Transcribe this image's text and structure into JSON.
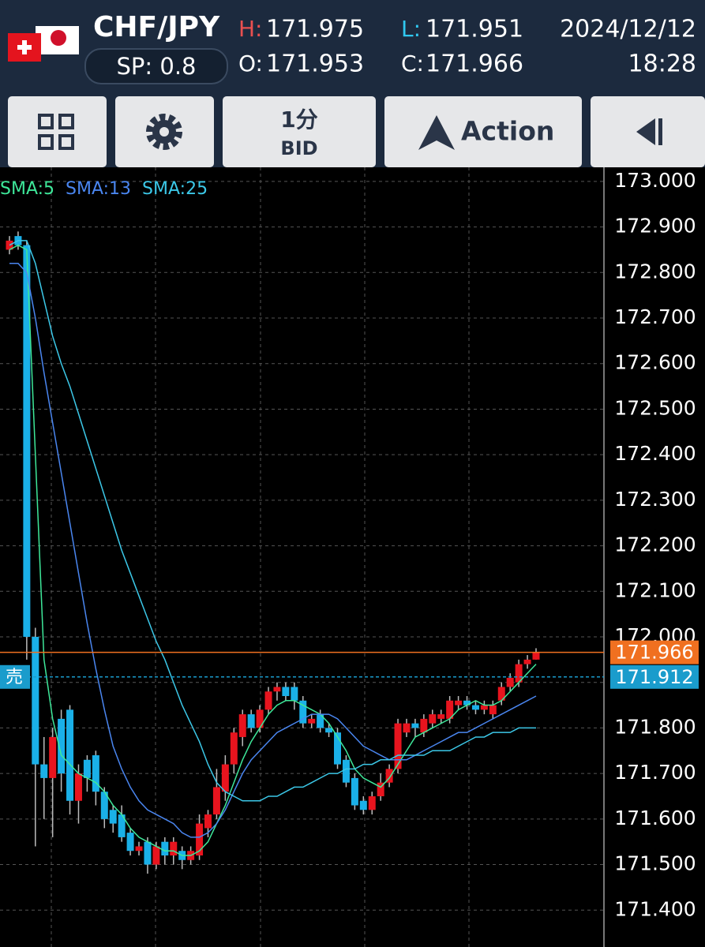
{
  "header": {
    "symbol": "CHF/JPY",
    "spread": "SP: 0.8",
    "high_label": "H:",
    "high": 171.975,
    "low_label": "L:",
    "low": 171.951,
    "open_label": "O:",
    "open": 171.953,
    "close_label": "C:",
    "close": 171.966,
    "date": "2024/12/12",
    "time": "18:28"
  },
  "toolbar": {
    "timeframe": "1分",
    "price_type": "BID",
    "action": "Action"
  },
  "chart_data": {
    "type": "candlestick",
    "up_color": "#e8141e",
    "down_color": "#1ab0e8",
    "open": [
      172.85,
      172.88,
      172.86,
      172.0,
      171.72,
      171.69,
      171.82,
      171.84,
      171.64,
      171.73,
      171.74,
      171.66,
      171.62,
      171.61,
      171.57,
      171.53,
      171.55,
      171.5,
      171.55,
      171.52,
      171.53,
      171.51,
      171.52,
      171.58,
      171.61,
      171.66,
      171.72,
      171.78,
      171.83,
      171.8,
      171.84,
      171.88,
      171.89,
      171.89,
      171.86,
      171.81,
      171.83,
      171.8,
      171.79,
      171.73,
      171.69,
      171.64,
      171.62,
      171.65,
      171.68,
      171.71,
      171.79,
      171.81,
      171.79,
      171.81,
      171.82,
      171.82,
      171.85,
      171.86,
      171.85,
      171.84,
      171.83,
      171.86,
      171.89,
      171.9,
      171.94,
      171.95
    ],
    "high": [
      172.88,
      172.89,
      172.87,
      172.02,
      171.78,
      171.8,
      171.84,
      171.85,
      171.72,
      171.74,
      171.75,
      171.67,
      171.63,
      171.63,
      171.58,
      171.55,
      171.56,
      171.55,
      171.56,
      171.56,
      171.54,
      171.54,
      171.61,
      171.62,
      171.71,
      171.74,
      171.8,
      171.84,
      171.84,
      171.85,
      171.89,
      171.9,
      171.9,
      171.9,
      171.87,
      171.83,
      171.84,
      171.81,
      171.8,
      171.74,
      171.7,
      171.65,
      171.66,
      171.7,
      171.72,
      171.82,
      171.82,
      171.82,
      171.83,
      171.84,
      171.84,
      171.87,
      171.87,
      171.87,
      171.86,
      171.86,
      171.86,
      171.9,
      171.92,
      171.95,
      171.96,
      171.975
    ],
    "low": [
      172.84,
      172.85,
      171.95,
      171.54,
      171.6,
      171.56,
      171.66,
      171.61,
      171.59,
      171.66,
      171.63,
      171.58,
      171.57,
      171.55,
      171.52,
      171.52,
      171.48,
      171.49,
      171.5,
      171.5,
      171.49,
      171.5,
      171.51,
      171.56,
      171.6,
      171.64,
      171.7,
      171.76,
      171.79,
      171.79,
      171.83,
      171.86,
      171.86,
      171.84,
      171.8,
      171.8,
      171.79,
      171.78,
      171.71,
      171.67,
      171.62,
      171.61,
      171.61,
      171.64,
      171.67,
      171.7,
      171.78,
      171.78,
      171.78,
      171.8,
      171.81,
      171.81,
      171.84,
      171.84,
      171.83,
      171.83,
      171.82,
      171.85,
      171.88,
      171.89,
      171.93,
      171.95
    ],
    "close": [
      172.87,
      172.86,
      172.0,
      171.72,
      171.69,
      171.78,
      171.7,
      171.64,
      171.7,
      171.69,
      171.66,
      171.6,
      171.59,
      171.56,
      171.53,
      171.54,
      171.5,
      171.54,
      171.52,
      171.55,
      171.51,
      171.53,
      171.59,
      171.61,
      171.67,
      171.72,
      171.79,
      171.83,
      171.8,
      171.84,
      171.88,
      171.89,
      171.87,
      171.86,
      171.81,
      171.82,
      171.8,
      171.79,
      171.72,
      171.68,
      171.63,
      171.62,
      171.65,
      171.68,
      171.71,
      171.81,
      171.81,
      171.8,
      171.82,
      171.83,
      171.83,
      171.86,
      171.86,
      171.85,
      171.84,
      171.85,
      171.85,
      171.89,
      171.91,
      171.94,
      171.95,
      171.966
    ],
    "indicators": [
      {
        "name": "SMA:5",
        "color": "#3ee89a",
        "values": [
          172.85,
          172.86,
          172.85,
          172.4,
          171.95,
          171.82,
          171.74,
          171.72,
          171.7,
          171.69,
          171.68,
          171.66,
          171.63,
          171.61,
          171.58,
          171.56,
          171.55,
          171.54,
          171.53,
          171.53,
          171.52,
          171.52,
          171.53,
          171.55,
          171.59,
          171.63,
          171.68,
          171.73,
          171.77,
          171.8,
          171.83,
          171.85,
          171.86,
          171.86,
          171.85,
          171.84,
          171.83,
          171.81,
          171.78,
          171.75,
          171.71,
          171.69,
          171.68,
          171.67,
          171.69,
          171.72,
          171.75,
          171.78,
          171.79,
          171.8,
          171.81,
          171.82,
          171.84,
          171.85,
          171.86,
          171.85,
          171.85,
          171.86,
          171.88,
          171.9,
          171.92,
          171.94
        ]
      },
      {
        "name": "SMA:13",
        "color": "#4a86f0",
        "values": [
          172.82,
          172.82,
          172.8,
          172.7,
          172.58,
          172.47,
          172.36,
          172.25,
          172.14,
          172.03,
          171.93,
          171.84,
          171.76,
          171.71,
          171.67,
          171.64,
          171.62,
          171.61,
          171.6,
          171.59,
          171.57,
          171.56,
          171.56,
          171.57,
          171.59,
          171.62,
          171.66,
          171.7,
          171.73,
          171.75,
          171.77,
          171.79,
          171.8,
          171.81,
          171.82,
          171.83,
          171.83,
          171.83,
          171.82,
          171.8,
          171.78,
          171.76,
          171.75,
          171.74,
          171.73,
          171.73,
          171.73,
          171.74,
          171.75,
          171.76,
          171.77,
          171.78,
          171.79,
          171.79,
          171.8,
          171.81,
          171.82,
          171.83,
          171.84,
          171.85,
          171.86,
          171.87
        ]
      },
      {
        "name": "SMA:25",
        "color": "#3cc8e8",
        "values": [
          172.86,
          172.87,
          172.87,
          172.82,
          172.74,
          172.66,
          172.6,
          172.55,
          172.49,
          172.43,
          172.37,
          172.31,
          172.25,
          172.19,
          172.14,
          172.09,
          172.04,
          171.99,
          171.95,
          171.9,
          171.85,
          171.81,
          171.77,
          171.72,
          171.68,
          171.66,
          171.65,
          171.64,
          171.64,
          171.64,
          171.65,
          171.65,
          171.66,
          171.67,
          171.67,
          171.68,
          171.69,
          171.7,
          171.7,
          171.71,
          171.71,
          171.72,
          171.72,
          171.73,
          171.73,
          171.74,
          171.74,
          171.74,
          171.74,
          171.75,
          171.75,
          171.75,
          171.76,
          171.77,
          171.78,
          171.78,
          171.79,
          171.79,
          171.79,
          171.8,
          171.8,
          171.8
        ]
      }
    ],
    "price_lines": [
      {
        "value": 171.966,
        "color": "#f07020"
      },
      {
        "value": 171.912,
        "color": "#1a9ccc",
        "label": "売"
      }
    ],
    "ylim": [
      171.319,
      173.031
    ],
    "yticks": [
      {
        "value": 173,
        "label": "173.000"
      },
      {
        "value": 172.9,
        "label": "172.900"
      },
      {
        "value": 172.8,
        "label": "172.800"
      },
      {
        "value": 172.7,
        "label": "172.700"
      },
      {
        "value": 172.6,
        "label": "172.600"
      },
      {
        "value": 172.5,
        "label": "172.500"
      },
      {
        "value": 172.4,
        "label": "172.400"
      },
      {
        "value": 172.3,
        "label": "172.300"
      },
      {
        "value": 172.2,
        "label": "172.200"
      },
      {
        "value": 172.1,
        "label": "172.100"
      },
      {
        "value": 172,
        "label": "172.000"
      },
      {
        "value": 171.9,
        "label": "171.900"
      },
      {
        "value": 171.8,
        "label": "171.800"
      },
      {
        "value": 171.7,
        "label": "171.700"
      },
      {
        "value": 171.6,
        "label": "171.600"
      },
      {
        "value": 171.5,
        "label": "171.500"
      },
      {
        "value": 171.4,
        "label": "171.400"
      }
    ],
    "grid": true
  }
}
